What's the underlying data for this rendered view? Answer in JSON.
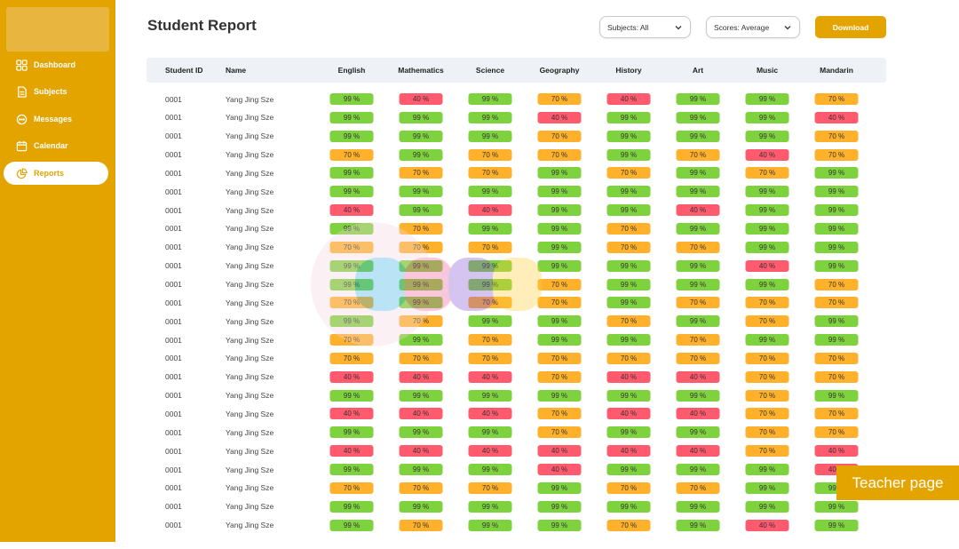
{
  "sidebar": {
    "items": [
      {
        "label": "Dashboard",
        "icon": "dashboard-icon",
        "active": false
      },
      {
        "label": "Subjects",
        "icon": "document-icon",
        "active": false
      },
      {
        "label": "Messages",
        "icon": "chat-icon",
        "active": false
      },
      {
        "label": "Calendar",
        "icon": "calendar-icon",
        "active": false
      },
      {
        "label": "Reports",
        "icon": "pie-chart-icon",
        "active": true
      }
    ]
  },
  "header": {
    "title": "Student Report",
    "subjects_filter": "Subjects: All",
    "scores_filter": "Scores: Average",
    "download_label": "Download"
  },
  "table": {
    "columns": [
      "Student ID",
      "Name",
      "English",
      "Mathematics",
      "Science",
      "Geography",
      "History",
      "Art",
      "Music",
      "Mandarin"
    ],
    "rows": [
      {
        "id": "0001",
        "name": "Yang Jing Sze",
        "scores": [
          "99 %",
          "40 %",
          "99 %",
          "70 %",
          "40 %",
          "99 %",
          "99 %",
          "70 %"
        ]
      },
      {
        "id": "0001",
        "name": "Yang Jing Sze",
        "scores": [
          "99 %",
          "99 %",
          "99 %",
          "40 %",
          "99 %",
          "99 %",
          "99 %",
          "40 %"
        ]
      },
      {
        "id": "0001",
        "name": "Yang Jing Sze",
        "scores": [
          "99 %",
          "99 %",
          "99 %",
          "70 %",
          "99 %",
          "99 %",
          "99 %",
          "70 %"
        ]
      },
      {
        "id": "0001",
        "name": "Yang Jing Sze",
        "scores": [
          "70 %",
          "99 %",
          "70 %",
          "70 %",
          "99 %",
          "70 %",
          "40 %",
          "70 %"
        ]
      },
      {
        "id": "0001",
        "name": "Yang Jing Sze",
        "scores": [
          "99 %",
          "70 %",
          "70 %",
          "99 %",
          "70 %",
          "99 %",
          "70 %",
          "99 %"
        ]
      },
      {
        "id": "0001",
        "name": "Yang Jing Sze",
        "scores": [
          "99 %",
          "99 %",
          "99 %",
          "99 %",
          "99 %",
          "99 %",
          "99 %",
          "99 %"
        ]
      },
      {
        "id": "0001",
        "name": "Yang Jing Sze",
        "scores": [
          "40 %",
          "99 %",
          "40 %",
          "99 %",
          "99 %",
          "40 %",
          "99 %",
          "99 %"
        ]
      },
      {
        "id": "0001",
        "name": "Yang Jing Sze",
        "scores": [
          "99 %",
          "70 %",
          "99 %",
          "99 %",
          "70 %",
          "99 %",
          "99 %",
          "99 %"
        ]
      },
      {
        "id": "0001",
        "name": "Yang Jing Sze",
        "scores": [
          "70 %",
          "70 %",
          "70 %",
          "99 %",
          "70 %",
          "70 %",
          "99 %",
          "99 %"
        ]
      },
      {
        "id": "0001",
        "name": "Yang Jing Sze",
        "scores": [
          "99 %",
          "99 %",
          "99 %",
          "99 %",
          "99 %",
          "99 %",
          "40 %",
          "99 %"
        ]
      },
      {
        "id": "0001",
        "name": "Yang Jing Sze",
        "scores": [
          "99 %",
          "99 %",
          "99 %",
          "70 %",
          "99 %",
          "99 %",
          "99 %",
          "70 %"
        ]
      },
      {
        "id": "0001",
        "name": "Yang Jing Sze",
        "scores": [
          "70 %",
          "99 %",
          "70 %",
          "70 %",
          "99 %",
          "70 %",
          "70 %",
          "70 %"
        ]
      },
      {
        "id": "0001",
        "name": "Yang Jing Sze",
        "scores": [
          "99 %",
          "70 %",
          "99 %",
          "99 %",
          "70 %",
          "99 %",
          "70 %",
          "99 %"
        ]
      },
      {
        "id": "0001",
        "name": "Yang Jing Sze",
        "scores": [
          "70 %",
          "99 %",
          "70 %",
          "99 %",
          "99 %",
          "70 %",
          "99 %",
          "99 %"
        ]
      },
      {
        "id": "0001",
        "name": "Yang Jing Sze",
        "scores": [
          "70 %",
          "70 %",
          "70 %",
          "70 %",
          "70 %",
          "70 %",
          "70 %",
          "70 %"
        ]
      },
      {
        "id": "0001",
        "name": "Yang Jing Sze",
        "scores": [
          "40 %",
          "40 %",
          "40 %",
          "70 %",
          "40 %",
          "40 %",
          "70 %",
          "70 %"
        ]
      },
      {
        "id": "0001",
        "name": "Yang Jing Sze",
        "scores": [
          "99 %",
          "99 %",
          "99 %",
          "99 %",
          "99 %",
          "99 %",
          "70 %",
          "99 %"
        ]
      },
      {
        "id": "0001",
        "name": "Yang Jing Sze",
        "scores": [
          "40 %",
          "40 %",
          "40 %",
          "70 %",
          "40 %",
          "40 %",
          "70 %",
          "70 %"
        ]
      },
      {
        "id": "0001",
        "name": "Yang Jing Sze",
        "scores": [
          "99 %",
          "99 %",
          "99 %",
          "70 %",
          "99 %",
          "99 %",
          "70 %",
          "70 %"
        ]
      },
      {
        "id": "0001",
        "name": "Yang Jing Sze",
        "scores": [
          "40 %",
          "40 %",
          "40 %",
          "40 %",
          "40 %",
          "40 %",
          "70 %",
          "40 %"
        ]
      },
      {
        "id": "0001",
        "name": "Yang Jing Sze",
        "scores": [
          "99 %",
          "99 %",
          "99 %",
          "40 %",
          "99 %",
          "99 %",
          "99 %",
          "40 %"
        ]
      },
      {
        "id": "0001",
        "name": "Yang Jing Sze",
        "scores": [
          "70 %",
          "70 %",
          "70 %",
          "99 %",
          "70 %",
          "70 %",
          "99 %",
          "99 %"
        ]
      },
      {
        "id": "0001",
        "name": "Yang Jing Sze",
        "scores": [
          "99 %",
          "99 %",
          "99 %",
          "99 %",
          "99 %",
          "99 %",
          "99 %",
          "99 %"
        ]
      },
      {
        "id": "0001",
        "name": "Yang Jing Sze",
        "scores": [
          "99 %",
          "70 %",
          "99 %",
          "99 %",
          "70 %",
          "99 %",
          "40 %",
          "99 %"
        ]
      }
    ]
  },
  "overlay_label": "Teacher page",
  "colors": {
    "brand": "#E3A400",
    "score_high": "#7ED23E",
    "score_mid": "#FFB12B",
    "score_low": "#FF5A6E",
    "table_header_bg": "#EEF2F6"
  }
}
